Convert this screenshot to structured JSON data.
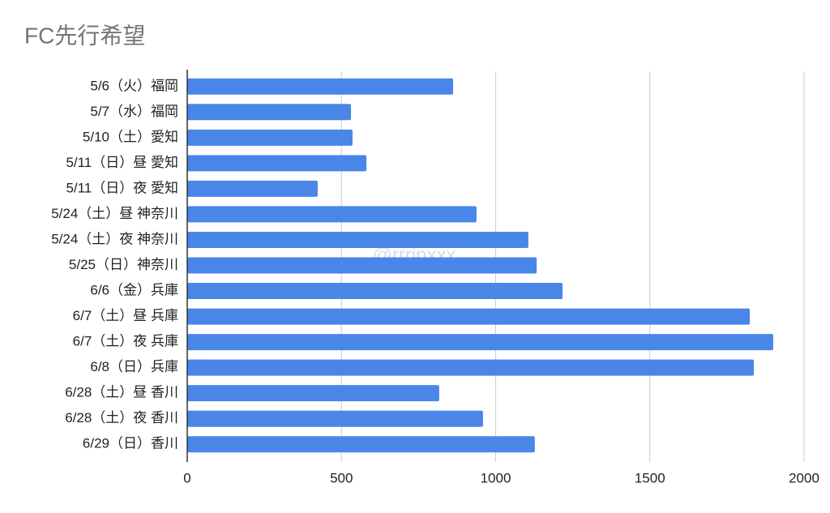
{
  "chart_data": {
    "type": "bar",
    "orientation": "horizontal",
    "title": "FC先行希望",
    "watermark": "@rrrinxxx",
    "categories": [
      "5/6（火）福岡",
      "5/7（水）福岡",
      "5/10（土）愛知",
      "5/11（日）昼 愛知",
      "5/11（日）夜 愛知",
      "5/24（土）昼 神奈川",
      "5/24（土）夜 神奈川",
      "5/25（日）神奈川",
      "6/6（金）兵庫",
      "6/7（土）昼 兵庫",
      "6/7（土）夜 兵庫",
      "6/8（日）兵庫",
      "6/28（土）昼 香川",
      "6/28（土）夜 香川",
      "6/29（日）香川"
    ],
    "values": [
      862,
      531,
      536,
      581,
      423,
      938,
      1106,
      1133,
      1217,
      1824,
      1900,
      1837,
      817,
      959,
      1127
    ],
    "color": "#4a86e8",
    "xlim": [
      0,
      2000
    ],
    "xticks": [
      0,
      500,
      1000,
      1500,
      2000
    ],
    "grid": true
  }
}
